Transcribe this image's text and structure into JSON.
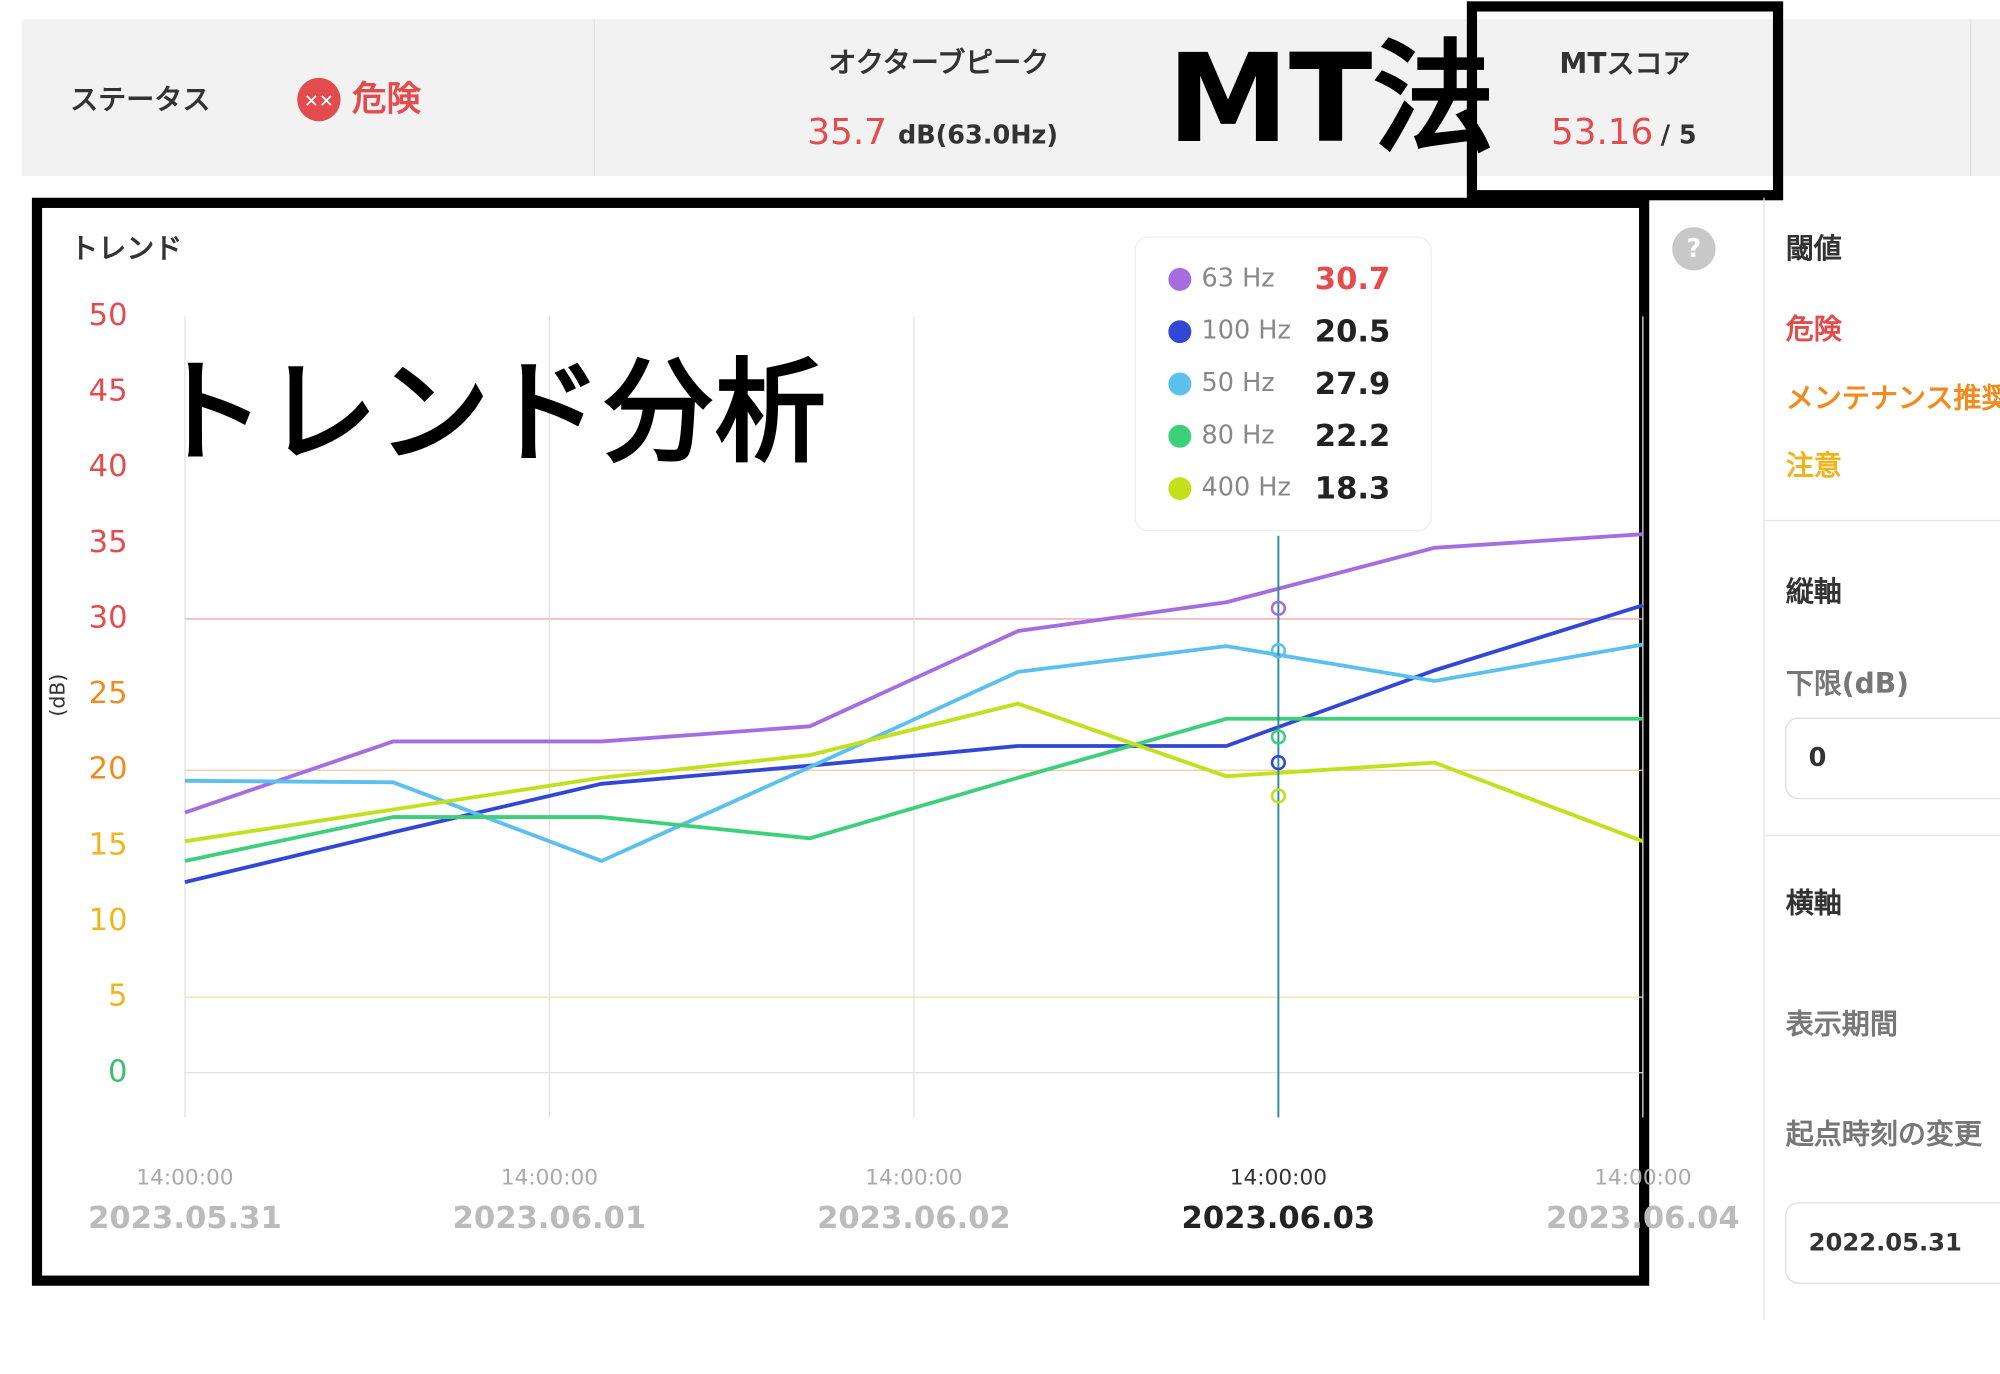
{
  "header": {
    "status_label": "ステータス",
    "status_value": "危険",
    "peak_label": "オクターブピーク",
    "peak_value": "35.7",
    "peak_unit": "dB(63.0Hz)",
    "score_label": "MTスコア",
    "score_value": "53.16",
    "score_max": "/ 5",
    "annotation": "MT法"
  },
  "chart_data": {
    "type": "line",
    "title": "トレンド",
    "annotation": "トレンド分析",
    "y_label": "(dB)",
    "ylim": [
      0,
      50
    ],
    "yticks": [
      0,
      5,
      10,
      15,
      20,
      25,
      30,
      35,
      40,
      45,
      50
    ],
    "ytick_colors": [
      "#3ebd6e",
      "#f0b41e",
      "#f0b41e",
      "#f0b41e",
      "#f08c1e",
      "#f08c1e",
      "#e24c4c",
      "#e24c4c",
      "#e24c4c",
      "#e24c4c",
      "#e24c4c"
    ],
    "xlim": [
      0,
      7
    ],
    "xticks": [
      {
        "value": 0,
        "label": "2023.05.31",
        "time": "14:00:00"
      },
      {
        "value": 1.75,
        "label": "2023.06.01",
        "time": "14:00:00"
      },
      {
        "value": 3.5,
        "label": "2023.06.02",
        "time": "14:00:00"
      },
      {
        "value": 5.25,
        "label": "2023.06.03",
        "time": "14:00:00"
      },
      {
        "value": 7,
        "label": "2023.06.04",
        "time": "14:00:00"
      }
    ],
    "x": [
      0,
      1,
      2,
      3,
      4,
      5,
      6,
      7
    ],
    "thresholds": [
      {
        "value": 30,
        "color": "#f2a6a6"
      },
      {
        "value": 20,
        "color": "#f5c99a"
      },
      {
        "value": 5,
        "color": "#f7dfa0"
      }
    ],
    "grid": true,
    "series": [
      {
        "name": "63 Hz",
        "color": "#a66de0",
        "values": [
          17.2,
          21.9,
          21.9,
          22.9,
          29.2,
          31.1,
          34.7,
          35.6
        ]
      },
      {
        "name": "100 Hz",
        "color": "#3347d6",
        "values": [
          12.6,
          15.9,
          19.1,
          20.3,
          21.6,
          21.6,
          26.6,
          30.9
        ]
      },
      {
        "name": "50 Hz",
        "color": "#5bc0ee",
        "values": [
          19.3,
          19.2,
          14.0,
          20.2,
          26.5,
          28.2,
          25.9,
          28.3
        ]
      },
      {
        "name": "80 Hz",
        "color": "#3ecf7a",
        "values": [
          14.0,
          16.9,
          16.9,
          15.5,
          19.5,
          23.4,
          23.4,
          23.4
        ]
      },
      {
        "name": "400 Hz",
        "color": "#c2e01c",
        "values": [
          15.3,
          17.4,
          19.5,
          21.0,
          24.4,
          19.6,
          20.5,
          15.3
        ]
      }
    ],
    "hover": {
      "x": 5.25,
      "values": [
        30.7,
        20.5,
        27.9,
        22.2,
        18.3
      ]
    }
  },
  "sidebar": {
    "threshold_title": "閾値",
    "danger": "危険",
    "maintenance": "メンテナンス推奨",
    "caution": "注意",
    "vaxis_title": "縦軸",
    "lower_label": "下限(dB)",
    "lower_value": "0",
    "haxis_title": "横軸",
    "period_label": "表示期間",
    "origin_label": "起点時刻の変更",
    "origin_value": "2022.05.31"
  }
}
